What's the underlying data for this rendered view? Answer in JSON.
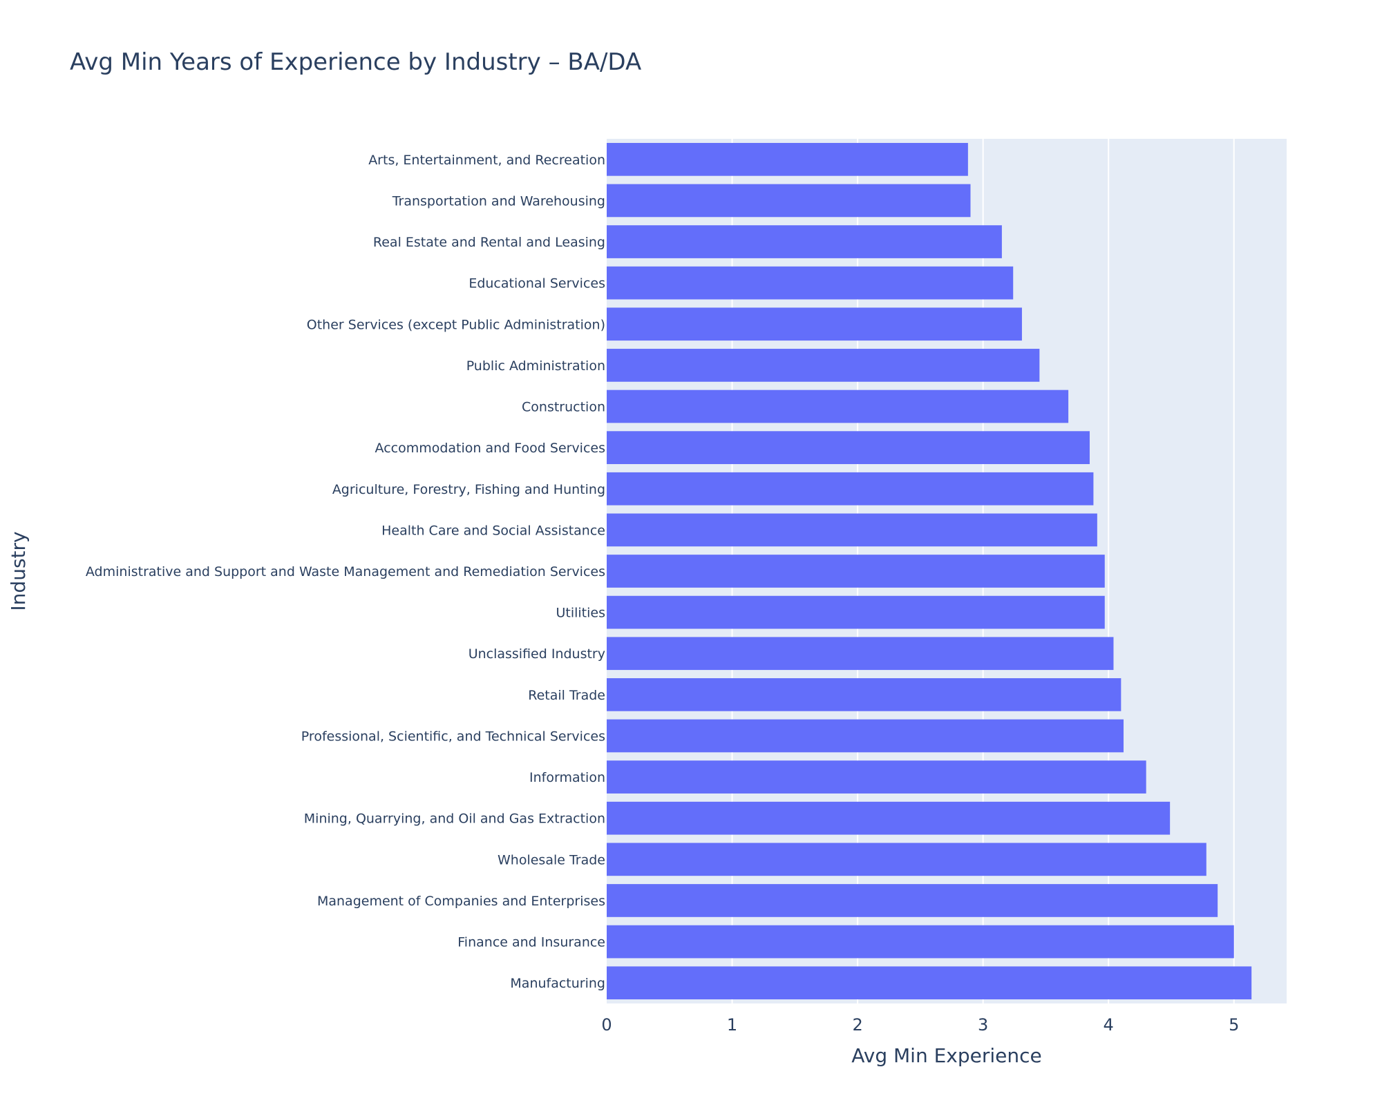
{
  "chart_data": {
    "type": "bar",
    "orientation": "horizontal",
    "title": "Avg Min Years of Experience by Industry – BA/DA",
    "xlabel": "Avg Min Experience",
    "ylabel": "Industry",
    "xlim": [
      0,
      5.42
    ],
    "xticks": [
      0,
      1,
      2,
      3,
      4,
      5
    ],
    "grid": true,
    "colors": {
      "bar": "#636efa",
      "plot_background": "#e5ecf6",
      "gridline": "#ffffff",
      "text": "#2a3f5f"
    },
    "categories": [
      "Arts, Entertainment, and Recreation",
      "Transportation and Warehousing",
      "Real Estate and Rental and Leasing",
      "Educational Services",
      "Other Services (except Public Administration)",
      "Public Administration",
      "Construction",
      "Accommodation and Food Services",
      "Agriculture, Forestry, Fishing and Hunting",
      "Health Care and Social Assistance",
      "Administrative and Support and Waste Management and Remediation Services",
      "Utilities",
      "Unclassified Industry",
      "Retail Trade",
      "Professional, Scientific, and Technical Services",
      "Information",
      "Mining, Quarrying, and Oil and Gas Extraction",
      "Wholesale Trade",
      "Management of Companies and Enterprises",
      "Finance and Insurance",
      "Manufacturing"
    ],
    "values": [
      2.88,
      2.9,
      3.15,
      3.24,
      3.31,
      3.45,
      3.68,
      3.85,
      3.88,
      3.91,
      3.97,
      3.97,
      4.04,
      4.1,
      4.12,
      4.3,
      4.49,
      4.78,
      4.87,
      5.0,
      5.14
    ]
  }
}
